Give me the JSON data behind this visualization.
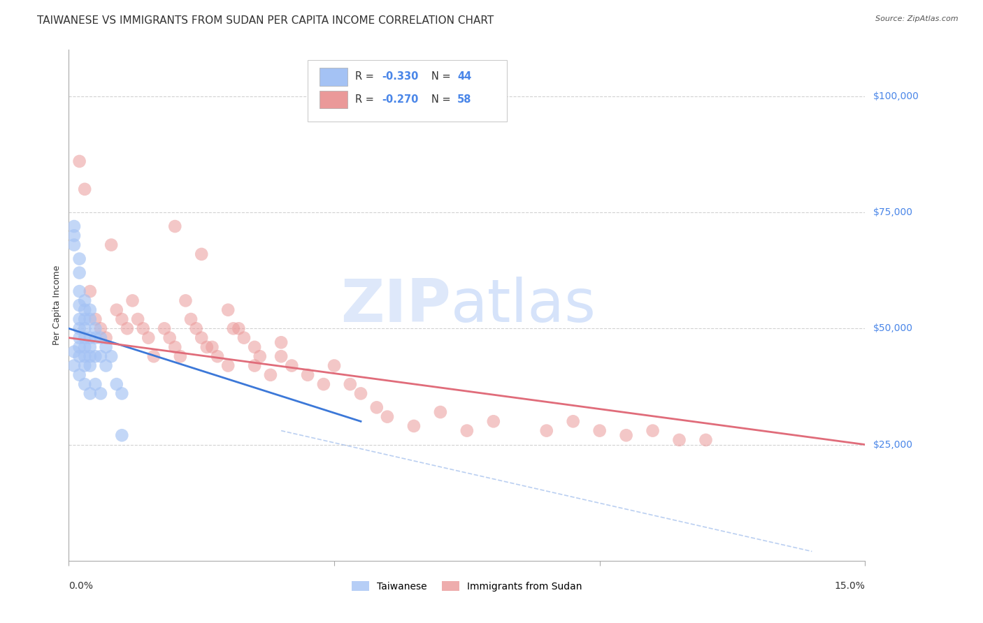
{
  "title": "TAIWANESE VS IMMIGRANTS FROM SUDAN PER CAPITA INCOME CORRELATION CHART",
  "source": "Source: ZipAtlas.com",
  "ylabel": "Per Capita Income",
  "ytick_labels": [
    "$25,000",
    "$50,000",
    "$75,000",
    "$100,000"
  ],
  "ytick_values": [
    25000,
    50000,
    75000,
    100000
  ],
  "xlim": [
    0.0,
    0.15
  ],
  "ylim": [
    0,
    110000
  ],
  "watermark_zip": "ZIP",
  "watermark_atlas": "atlas",
  "legend_r1": "R = -0.330",
  "legend_n1": "N = 44",
  "legend_r2": "R = -0.270",
  "legend_n2": "N = 58",
  "legend_label_blue": "Taiwanese",
  "legend_label_pink": "Immigrants from Sudan",
  "blue_scatter_x": [
    0.001,
    0.001,
    0.001,
    0.001,
    0.001,
    0.002,
    0.002,
    0.002,
    0.002,
    0.002,
    0.002,
    0.002,
    0.002,
    0.002,
    0.002,
    0.003,
    0.003,
    0.003,
    0.003,
    0.003,
    0.003,
    0.003,
    0.003,
    0.003,
    0.004,
    0.004,
    0.004,
    0.004,
    0.004,
    0.004,
    0.004,
    0.005,
    0.005,
    0.005,
    0.005,
    0.006,
    0.006,
    0.006,
    0.007,
    0.007,
    0.008,
    0.009,
    0.01,
    0.01
  ],
  "blue_scatter_y": [
    72000,
    70000,
    68000,
    45000,
    42000,
    65000,
    62000,
    58000,
    55000,
    52000,
    50000,
    48000,
    46000,
    44000,
    40000,
    56000,
    54000,
    52000,
    50000,
    48000,
    46000,
    44000,
    42000,
    38000,
    54000,
    52000,
    48000,
    46000,
    44000,
    42000,
    36000,
    50000,
    48000,
    44000,
    38000,
    48000,
    44000,
    36000,
    46000,
    42000,
    44000,
    38000,
    36000,
    27000
  ],
  "pink_scatter_x": [
    0.002,
    0.003,
    0.004,
    0.005,
    0.006,
    0.007,
    0.008,
    0.009,
    0.01,
    0.011,
    0.012,
    0.013,
    0.014,
    0.015,
    0.016,
    0.018,
    0.019,
    0.02,
    0.021,
    0.022,
    0.024,
    0.025,
    0.026,
    0.028,
    0.03,
    0.03,
    0.032,
    0.033,
    0.035,
    0.035,
    0.036,
    0.038,
    0.04,
    0.042,
    0.045,
    0.048,
    0.05,
    0.053,
    0.055,
    0.058,
    0.06,
    0.065,
    0.07,
    0.075,
    0.08,
    0.09,
    0.095,
    0.1,
    0.105,
    0.11,
    0.115,
    0.12,
    0.023,
    0.027,
    0.031,
    0.04,
    0.02,
    0.025
  ],
  "pink_scatter_y": [
    86000,
    80000,
    58000,
    52000,
    50000,
    48000,
    68000,
    54000,
    52000,
    50000,
    56000,
    52000,
    50000,
    48000,
    44000,
    50000,
    48000,
    46000,
    44000,
    56000,
    50000,
    48000,
    46000,
    44000,
    54000,
    42000,
    50000,
    48000,
    46000,
    42000,
    44000,
    40000,
    44000,
    42000,
    40000,
    38000,
    42000,
    38000,
    36000,
    33000,
    31000,
    29000,
    32000,
    28000,
    30000,
    28000,
    30000,
    28000,
    27000,
    28000,
    26000,
    26000,
    52000,
    46000,
    50000,
    47000,
    72000,
    66000
  ],
  "blue_line_x": [
    0.0,
    0.055
  ],
  "blue_line_y": [
    50000,
    30000
  ],
  "pink_line_x": [
    0.0,
    0.15
  ],
  "pink_line_y": [
    48000,
    25000
  ],
  "dashed_line_x": [
    0.04,
    0.14
  ],
  "dashed_line_y": [
    28000,
    2000
  ],
  "background_color": "#ffffff",
  "grid_color": "#cccccc",
  "blue_color": "#a4c2f4",
  "pink_color": "#ea9999",
  "blue_line_color": "#3c78d8",
  "pink_line_color": "#e06c7a",
  "yticklabel_color": "#4a86e8",
  "legend_color_rn": "#4a86e8",
  "title_fontsize": 11,
  "axis_label_fontsize": 9,
  "tick_fontsize": 10
}
